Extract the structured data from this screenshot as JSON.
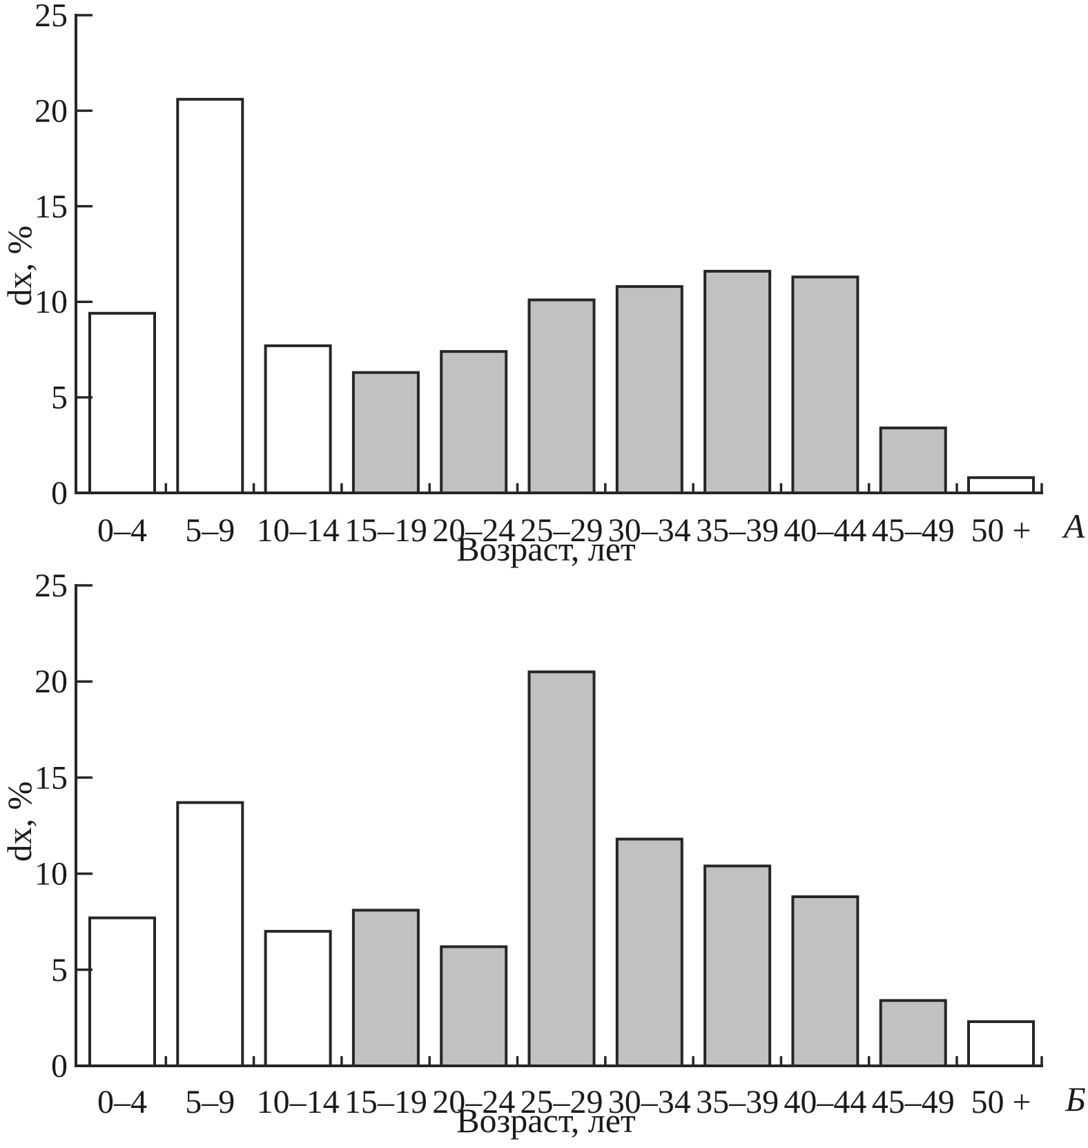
{
  "colors": {
    "bar_fill_gray": "#c1c1c1",
    "bar_fill_white": "#ffffff",
    "line": "#262626",
    "text": "#1a1a1a"
  },
  "chart_data": [
    {
      "type": "bar",
      "panel_label": "А",
      "xlabel": "Возраст, лет",
      "ylabel": "dx, %",
      "ylim": [
        0,
        25
      ],
      "yticks": [
        0,
        5,
        10,
        15,
        20,
        25
      ],
      "grid": false,
      "legend": "none",
      "categories": [
        "0–4",
        "5–9",
        "10–14",
        "15–19",
        "20–24",
        "25–29",
        "30–34",
        "35–39",
        "40–44",
        "45–49",
        "50 +"
      ],
      "values": [
        9.4,
        20.6,
        7.7,
        6.3,
        7.4,
        10.1,
        10.8,
        11.6,
        11.3,
        3.4,
        0.8
      ],
      "bar_styles": [
        "white",
        "white",
        "white",
        "gray",
        "gray",
        "gray",
        "gray",
        "gray",
        "gray",
        "gray",
        "white"
      ]
    },
    {
      "type": "bar",
      "panel_label": "Б",
      "xlabel": "Возраст, лет",
      "ylabel": "dx, %",
      "ylim": [
        0,
        25
      ],
      "yticks": [
        0,
        5,
        10,
        15,
        20,
        25
      ],
      "grid": false,
      "legend": "none",
      "categories": [
        "0–4",
        "5–9",
        "10–14",
        "15–19",
        "20–24",
        "25–29",
        "30–34",
        "35–39",
        "40–44",
        "45–49",
        "50 +"
      ],
      "values": [
        7.7,
        13.7,
        7.0,
        8.1,
        6.2,
        20.5,
        11.8,
        10.4,
        8.8,
        3.4,
        2.3
      ],
      "bar_styles": [
        "white",
        "white",
        "white",
        "gray",
        "gray",
        "gray",
        "gray",
        "gray",
        "gray",
        "gray",
        "white"
      ]
    }
  ]
}
